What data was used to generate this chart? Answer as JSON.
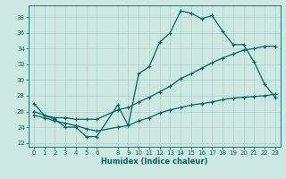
{
  "xlabel": "Humidex (Indice chaleur)",
  "ylabel": "",
  "bg_color": "#cce8e0",
  "line_color": "#006666",
  "grid_color": "#b0d4cc",
  "xlim": [
    -0.5,
    23.5
  ],
  "ylim": [
    21.5,
    39.5
  ],
  "yticks": [
    22,
    24,
    26,
    28,
    30,
    32,
    34,
    36,
    38
  ],
  "xticks": [
    0,
    1,
    2,
    3,
    4,
    5,
    6,
    8,
    9,
    10,
    11,
    12,
    13,
    14,
    15,
    16,
    17,
    18,
    19,
    20,
    21,
    22,
    23
  ],
  "curve1_x": [
    0,
    1,
    2,
    3,
    4,
    5,
    6,
    8,
    9,
    10,
    11,
    12,
    13,
    14,
    15,
    16,
    17,
    18,
    19,
    20,
    21,
    22,
    23
  ],
  "curve1_y": [
    27.0,
    25.5,
    25.0,
    24.0,
    24.0,
    22.8,
    22.8,
    26.8,
    24.2,
    30.8,
    31.7,
    34.8,
    36.0,
    38.8,
    38.5,
    37.8,
    38.2,
    36.2,
    34.5,
    34.5,
    32.3,
    29.5,
    27.8
  ],
  "curve2_x": [
    0,
    1,
    2,
    3,
    4,
    5,
    6,
    8,
    9,
    10,
    11,
    12,
    13,
    14,
    15,
    16,
    17,
    18,
    19,
    20,
    21,
    22,
    23
  ],
  "curve2_y": [
    26.0,
    25.5,
    25.2,
    25.2,
    25.0,
    25.0,
    25.0,
    26.2,
    26.5,
    27.2,
    27.8,
    28.5,
    29.2,
    30.2,
    30.8,
    31.5,
    32.2,
    32.8,
    33.3,
    33.8,
    34.0,
    34.3,
    34.3
  ],
  "curve3_x": [
    0,
    1,
    2,
    3,
    4,
    5,
    6,
    8,
    9,
    10,
    11,
    12,
    13,
    14,
    15,
    16,
    17,
    18,
    19,
    20,
    21,
    22,
    23
  ],
  "curve3_y": [
    25.5,
    25.2,
    24.8,
    24.5,
    24.2,
    23.8,
    23.5,
    24.0,
    24.2,
    24.8,
    25.2,
    25.8,
    26.2,
    26.5,
    26.8,
    27.0,
    27.2,
    27.5,
    27.7,
    27.8,
    27.9,
    28.0,
    28.2
  ],
  "marker": "+",
  "markersize": 3,
  "linewidth": 0.9,
  "tick_fontsize": 5,
  "xlabel_fontsize": 6
}
